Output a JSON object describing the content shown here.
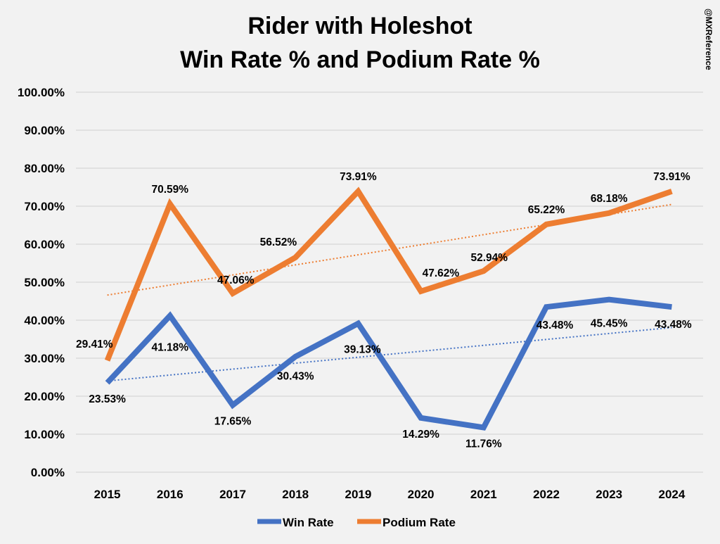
{
  "chart_data": {
    "type": "line",
    "title": [
      "Rider with Holeshot",
      "Win Rate % and Podium Rate %"
    ],
    "watermark": "@MXReference",
    "categories": [
      "2015",
      "2016",
      "2017",
      "2018",
      "2019",
      "2020",
      "2021",
      "2022",
      "2023",
      "2024"
    ],
    "ylim": [
      0,
      100
    ],
    "yticks": [
      0,
      10,
      20,
      30,
      40,
      50,
      60,
      70,
      80,
      90,
      100
    ],
    "ytick_labels": [
      "0.00%",
      "10.00%",
      "20.00%",
      "30.00%",
      "40.00%",
      "50.00%",
      "60.00%",
      "70.00%",
      "80.00%",
      "90.00%",
      "100.00%"
    ],
    "grid": true,
    "legend_position": "bottom",
    "series": [
      {
        "name": "Win Rate",
        "color": "#4472c4",
        "values": [
          23.53,
          41.18,
          17.65,
          30.43,
          39.13,
          14.29,
          11.76,
          43.48,
          45.45,
          43.48
        ],
        "labels": [
          "23.53%",
          "41.18%",
          "17.65%",
          "30.43%",
          "39.13%",
          "14.29%",
          "11.76%",
          "43.48%",
          "45.45%",
          "43.48%"
        ],
        "trendline": "linear"
      },
      {
        "name": "Podium Rate",
        "color": "#ed7d31",
        "values": [
          29.41,
          70.59,
          47.06,
          56.52,
          73.91,
          47.62,
          52.94,
          65.22,
          68.18,
          73.91
        ],
        "labels": [
          "29.41%",
          "70.59%",
          "47.06%",
          "56.52%",
          "73.91%",
          "47.62%",
          "52.94%",
          "65.22%",
          "68.18%",
          "73.91%"
        ],
        "trendline": "linear"
      }
    ]
  }
}
